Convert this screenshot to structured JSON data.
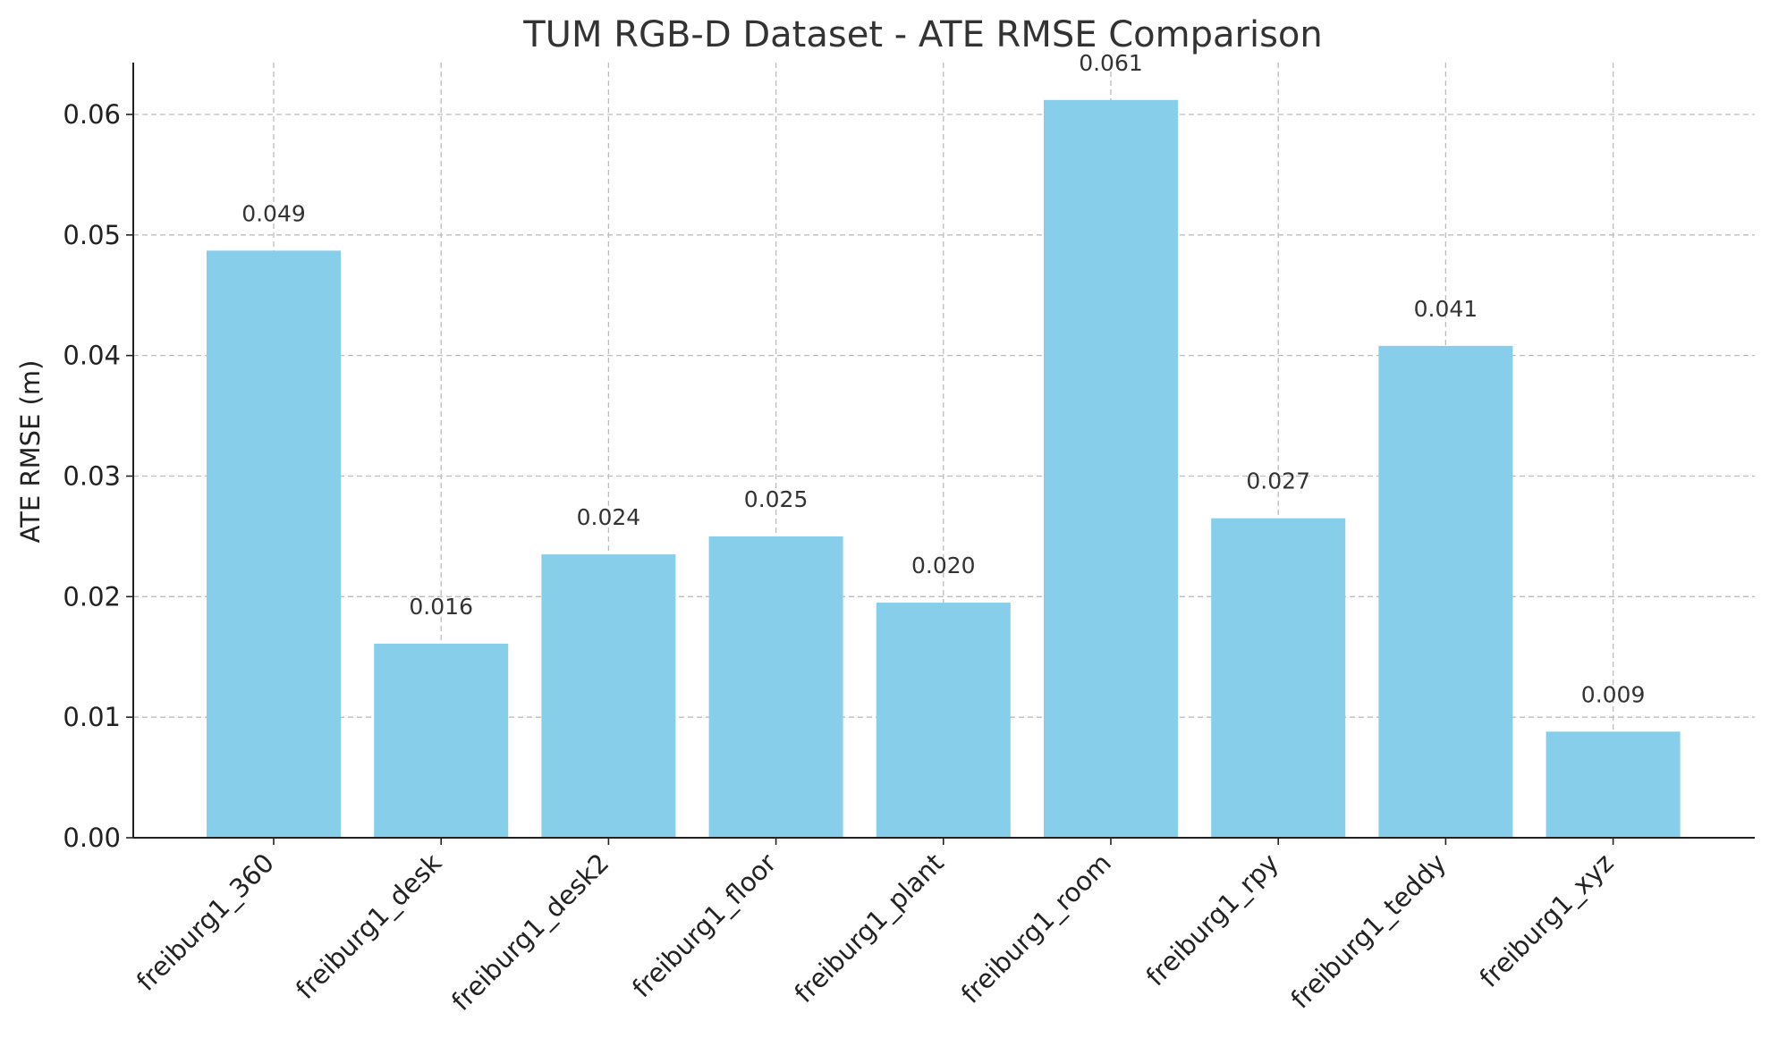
{
  "chart_data": {
    "type": "bar",
    "title": "TUM RGB-D Dataset - ATE RMSE Comparison",
    "xlabel": "",
    "ylabel": "ATE RMSE (m)",
    "ylim": [
      0,
      0.0643
    ],
    "yticks": [
      "0.00",
      "0.01",
      "0.02",
      "0.03",
      "0.04",
      "0.05",
      "0.06"
    ],
    "categories": [
      "freiburg1_360",
      "freiburg1_desk",
      "freiburg1_desk2",
      "freiburg1_floor",
      "freiburg1_plant",
      "freiburg1_room",
      "freiburg1_rpy",
      "freiburg1_teddy",
      "freiburg1_xyz"
    ],
    "values": [
      0.0487,
      0.0161,
      0.0235,
      0.025,
      0.0195,
      0.0612,
      0.0265,
      0.0408,
      0.0088
    ],
    "value_labels": [
      "0.049",
      "0.016",
      "0.024",
      "0.025",
      "0.020",
      "0.061",
      "0.027",
      "0.041",
      "0.009"
    ],
    "grid": true,
    "bar_color": "#87ceeb"
  }
}
